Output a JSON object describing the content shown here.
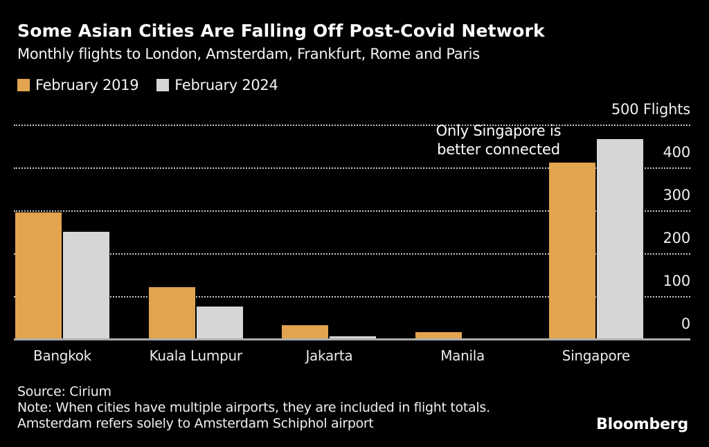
{
  "header": {
    "title": "Some Asian Cities Are Falling Off Post-Covid Network",
    "subtitle": "Monthly flights to London, Amsterdam, Frankfurt, Rome and Paris"
  },
  "legend": [
    {
      "label": "February 2019",
      "color": "#E2A44E"
    },
    {
      "label": "February 2024",
      "color": "#D6D6D6"
    }
  ],
  "chart_data": {
    "type": "bar",
    "categories": [
      "Bangkok",
      "Kuala Lumpur",
      "Jakarta",
      "Manila",
      "Singapore"
    ],
    "series": [
      {
        "name": "February 2019",
        "color": "#E2A44E",
        "values": [
          298,
          124,
          35,
          19,
          415
        ]
      },
      {
        "name": "February 2024",
        "color": "#D6D6D6",
        "values": [
          253,
          79,
          10,
          3,
          470
        ]
      }
    ],
    "ylim": [
      0,
      500
    ],
    "y_ticks": [
      0,
      100,
      200,
      300,
      400,
      500
    ],
    "y_top_label": "500 Flights",
    "unit": "Flights",
    "axis_side": "right",
    "grid": "horizontal-dotted",
    "legend_position": "top-left",
    "annotation": {
      "lines": [
        "Only Singapore is",
        "better connected"
      ]
    },
    "colors": {
      "background": "#000000",
      "gridline": "#C9C9C9",
      "baseline": "#AEAEAE",
      "text": "#F0F0F0"
    }
  },
  "footer": {
    "source": "Source: Cirium",
    "note_line1": "Note: When cities have multiple airports, they are included in flight totals.",
    "note_line2": "Amsterdam refers solely to Amsterdam Schiphol airport",
    "brand": "Bloomberg"
  }
}
